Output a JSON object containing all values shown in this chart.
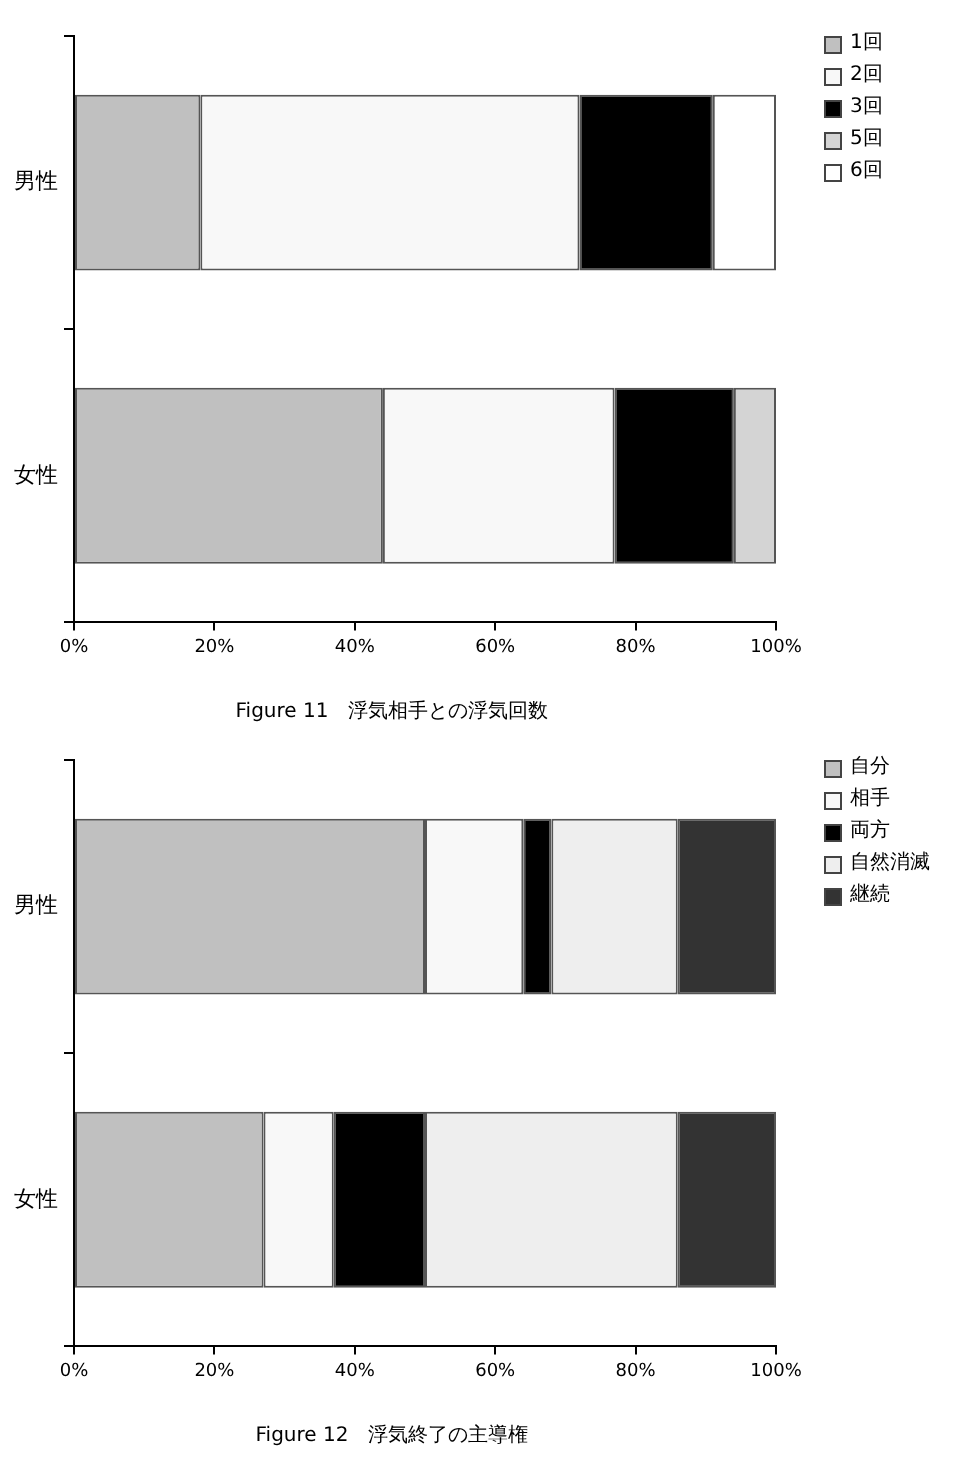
{
  "chart_data": [
    {
      "type": "bar",
      "orientation": "horizontal",
      "stacked": true,
      "title": "Figure 11　浮気相手との浮気回数",
      "categories": [
        "男性",
        "女性"
      ],
      "legend": "top right",
      "xlim": [
        0,
        100
      ],
      "xticks": [
        {
          "value": 0,
          "label": "0%"
        },
        {
          "value": 20,
          "label": "20%"
        },
        {
          "value": 40,
          "label": "40%"
        },
        {
          "value": 60,
          "label": "60%"
        },
        {
          "value": 80,
          "label": "80%"
        },
        {
          "value": 100,
          "label": "100%"
        }
      ],
      "series": [
        {
          "name": "1回",
          "color": "#c0c0c0",
          "values": [
            18,
            44
          ]
        },
        {
          "name": "2回",
          "color": "#f8f8f8",
          "values": [
            54,
            33
          ]
        },
        {
          "name": "3回",
          "color": "#000000",
          "values": [
            19,
            17
          ]
        },
        {
          "name": "5回",
          "color": "#d4d4d4",
          "values": [
            0,
            6
          ]
        },
        {
          "name": "6回",
          "color": "#ffffff",
          "values": [
            9,
            0
          ]
        }
      ]
    },
    {
      "type": "bar",
      "orientation": "horizontal",
      "stacked": true,
      "title": "Figure 12　浮気終了の主導権",
      "categories": [
        "男性",
        "女性"
      ],
      "legend": "top right",
      "xlim": [
        0,
        100
      ],
      "xticks": [
        {
          "value": 0,
          "label": "0%"
        },
        {
          "value": 20,
          "label": "20%"
        },
        {
          "value": 40,
          "label": "40%"
        },
        {
          "value": 60,
          "label": "60%"
        },
        {
          "value": 80,
          "label": "80%"
        },
        {
          "value": 100,
          "label": "100%"
        }
      ],
      "series": [
        {
          "name": "自分",
          "color": "#c0c0c0",
          "values": [
            50,
            27
          ]
        },
        {
          "name": "相手",
          "color": "#f8f8f8",
          "values": [
            14,
            10
          ]
        },
        {
          "name": "両方",
          "color": "#000000",
          "values": [
            4,
            13
          ]
        },
        {
          "name": "自然消滅",
          "color": "#eeeeee",
          "values": [
            18,
            36
          ]
        },
        {
          "name": "継続",
          "color": "#333333",
          "values": [
            14,
            14
          ]
        }
      ]
    }
  ]
}
